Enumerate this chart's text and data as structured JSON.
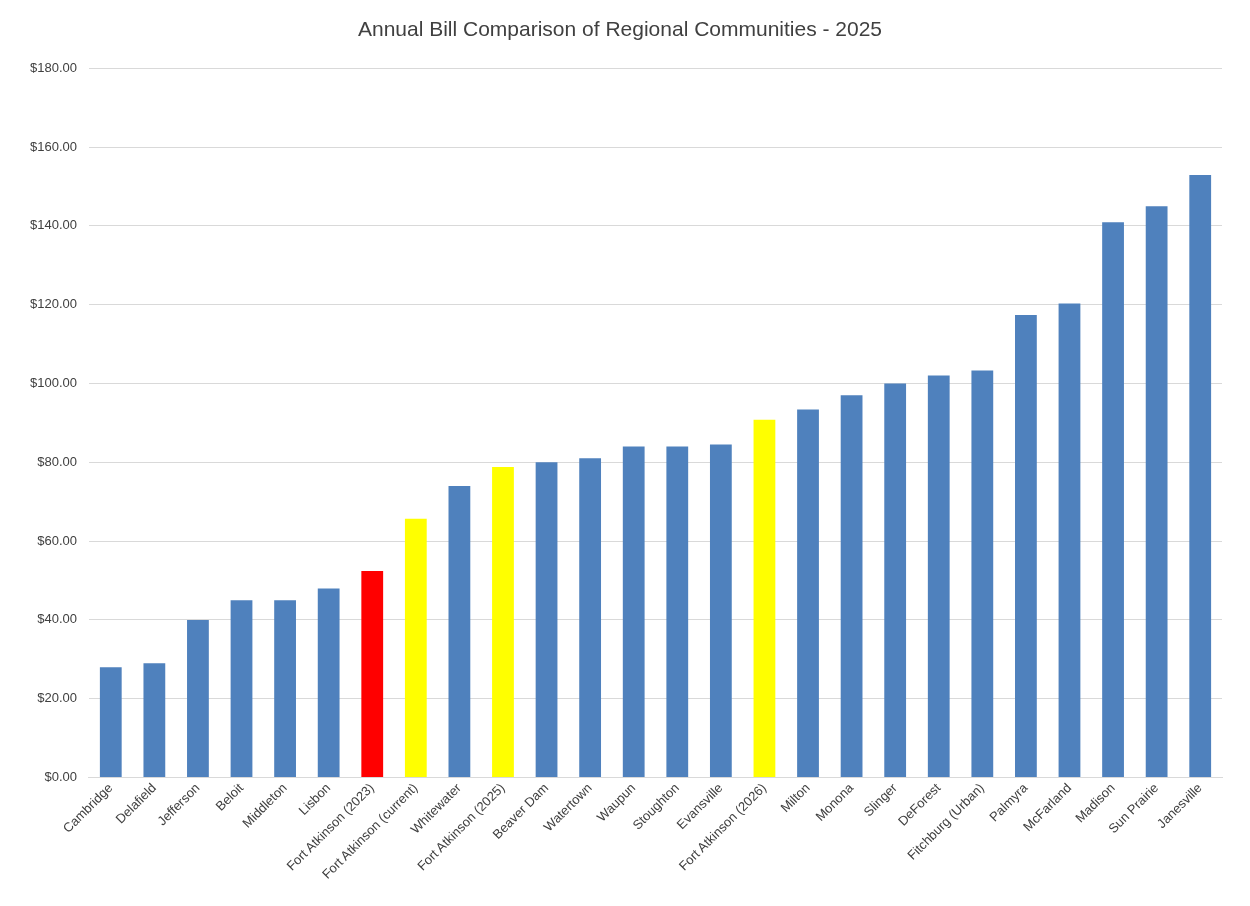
{
  "chart_data": {
    "type": "bar",
    "title": "Annual Bill Comparison of Regional Communities - 2025",
    "categories": [
      "Cambridge",
      "Delafield",
      "Jefferson",
      "Beloit",
      "Middleton",
      "Lisbon",
      "Fort Atkinson (2023)",
      "Fort Atkinson (current)",
      "Whitewater",
      "Fort Atkinson (2025)",
      "Beaver Dam",
      "Watertown",
      "Waupun",
      "Stoughton",
      "Evansville",
      "Fort Atkinson (2026)",
      "Milton",
      "Monona",
      "Slinger",
      "DeForest",
      "Fitchburg (Urban)",
      "Palmyra",
      "McFarland",
      "Madison",
      "Sun Prairie",
      "Janesville"
    ],
    "values": [
      28,
      29,
      40,
      45,
      45,
      48,
      52.4,
      65.7,
      74,
      78.8,
      80,
      81,
      84,
      84,
      84.5,
      90.8,
      93.4,
      97,
      100,
      102,
      103.3,
      117.4,
      120.3,
      140.9,
      145,
      152.9
    ],
    "colors": [
      "#4f81bd",
      "#4f81bd",
      "#4f81bd",
      "#4f81bd",
      "#4f81bd",
      "#4f81bd",
      "#ff0000",
      "#ffff00",
      "#4f81bd",
      "#ffff00",
      "#4f81bd",
      "#4f81bd",
      "#4f81bd",
      "#4f81bd",
      "#4f81bd",
      "#ffff00",
      "#4f81bd",
      "#4f81bd",
      "#4f81bd",
      "#4f81bd",
      "#4f81bd",
      "#4f81bd",
      "#4f81bd",
      "#4f81bd",
      "#4f81bd",
      "#4f81bd"
    ],
    "ylim": [
      0,
      180
    ],
    "yticks": [
      {
        "value": 0,
        "label": "$0.00"
      },
      {
        "value": 20,
        "label": "$20.00"
      },
      {
        "value": 40,
        "label": "$40.00"
      },
      {
        "value": 60,
        "label": "$60.00"
      },
      {
        "value": 80,
        "label": "$80.00"
      },
      {
        "value": 100,
        "label": "$100.00"
      },
      {
        "value": 120,
        "label": "$120.00"
      },
      {
        "value": 140,
        "label": "$140.00"
      },
      {
        "value": 160,
        "label": "$160.00"
      },
      {
        "value": 180,
        "label": "$180.00"
      }
    ],
    "grid": "y",
    "legend": false
  }
}
